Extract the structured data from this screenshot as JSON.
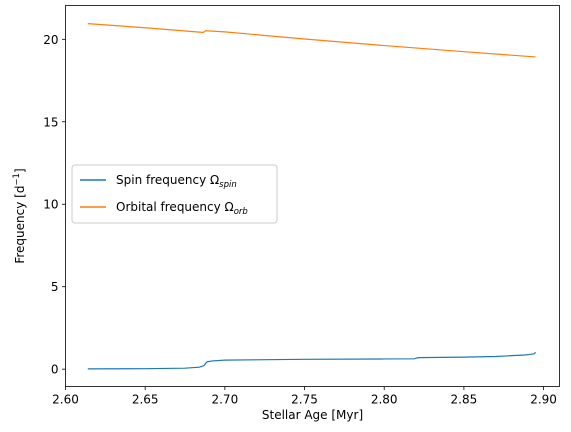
{
  "chart_data": {
    "type": "line",
    "xlabel": "Stellar Age [Myr]",
    "ylabel": {
      "prefix": "Frequency [d",
      "sup": "−1",
      "suffix": "]"
    },
    "xlim": [
      2.6,
      2.91
    ],
    "ylim": [
      -1.05,
      22.05
    ],
    "xticks": [
      2.6,
      2.65,
      2.7,
      2.75,
      2.8,
      2.85,
      2.9
    ],
    "xtick_labels": [
      "2.60",
      "2.65",
      "2.70",
      "2.75",
      "2.80",
      "2.85",
      "2.90"
    ],
    "yticks": [
      0,
      5,
      10,
      15,
      20
    ],
    "ytick_labels": [
      "0",
      "5",
      "10",
      "15",
      "20"
    ],
    "grid": false,
    "legend_position": "center-left",
    "series": [
      {
        "name": {
          "main": "Spin frequency Ω",
          "sub": "spin"
        },
        "color": "#1f77b4",
        "x": [
          2.614,
          2.65,
          2.675,
          2.684,
          2.687,
          2.688,
          2.689,
          2.692,
          2.7,
          2.75,
          2.8,
          2.819,
          2.8205,
          2.822,
          2.85,
          2.87,
          2.88,
          2.888,
          2.892,
          2.894,
          2.895
        ],
        "y": [
          0.02,
          0.03,
          0.06,
          0.12,
          0.22,
          0.36,
          0.45,
          0.5,
          0.55,
          0.6,
          0.62,
          0.63,
          0.68,
          0.7,
          0.73,
          0.77,
          0.82,
          0.86,
          0.9,
          0.93,
          1.02
        ]
      },
      {
        "name": {
          "main": "Orbital frequency Ω",
          "sub": "orb"
        },
        "color": "#ff7f0e",
        "x": [
          2.614,
          2.65,
          2.686,
          2.6865,
          2.688,
          2.7,
          2.75,
          2.8,
          2.85,
          2.895
        ],
        "y": [
          20.95,
          20.7,
          20.42,
          20.42,
          20.52,
          20.45,
          20.02,
          19.62,
          19.25,
          18.93
        ]
      }
    ]
  }
}
